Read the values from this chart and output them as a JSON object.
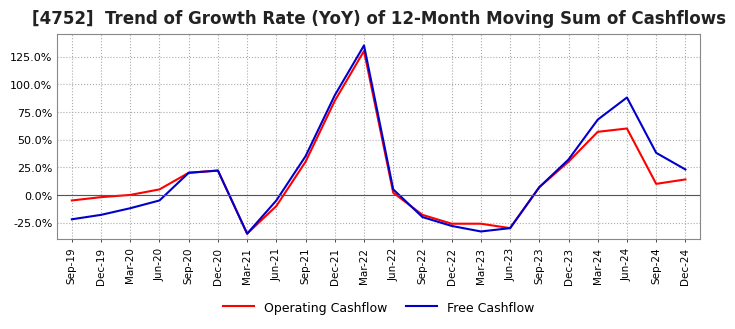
{
  "title": "[4752]  Trend of Growth Rate (YoY) of 12-Month Moving Sum of Cashflows",
  "title_fontsize": 12,
  "ylim": [
    -0.4,
    1.45
  ],
  "yticks": [
    -0.25,
    0.0,
    0.25,
    0.5,
    0.75,
    1.0,
    1.25
  ],
  "ytick_labels": [
    "-25.0%",
    "0.0%",
    "25.0%",
    "50.0%",
    "75.0%",
    "100.0%",
    "125.0%"
  ],
  "x_labels": [
    "Sep-19",
    "Dec-19",
    "Mar-20",
    "Jun-20",
    "Sep-20",
    "Dec-20",
    "Mar-21",
    "Jun-21",
    "Sep-21",
    "Dec-21",
    "Mar-22",
    "Jun-22",
    "Sep-22",
    "Dec-22",
    "Mar-23",
    "Jun-23",
    "Sep-23",
    "Dec-23",
    "Mar-24",
    "Jun-24",
    "Sep-24",
    "Dec-24"
  ],
  "operating_cashflow": [
    -0.05,
    -0.02,
    0.0,
    0.05,
    0.2,
    0.22,
    -0.35,
    -0.1,
    0.3,
    0.85,
    1.3,
    0.02,
    -0.18,
    -0.26,
    -0.26,
    -0.3,
    0.07,
    0.3,
    0.57,
    0.6,
    0.1,
    0.14
  ],
  "free_cashflow": [
    -0.22,
    -0.18,
    -0.12,
    -0.05,
    0.2,
    0.22,
    -0.35,
    -0.05,
    0.35,
    0.9,
    1.35,
    0.05,
    -0.2,
    -0.28,
    -0.33,
    -0.3,
    0.07,
    0.32,
    0.68,
    0.88,
    0.38,
    0.23
  ],
  "op_color": "#ff0000",
  "free_color": "#0000cc",
  "background_color": "#ffffff",
  "plot_bg_color": "#ffffff",
  "grid_color": "#aaaaaa",
  "border_color": "#888888",
  "legend_op": "Operating Cashflow",
  "legend_free": "Free Cashflow"
}
